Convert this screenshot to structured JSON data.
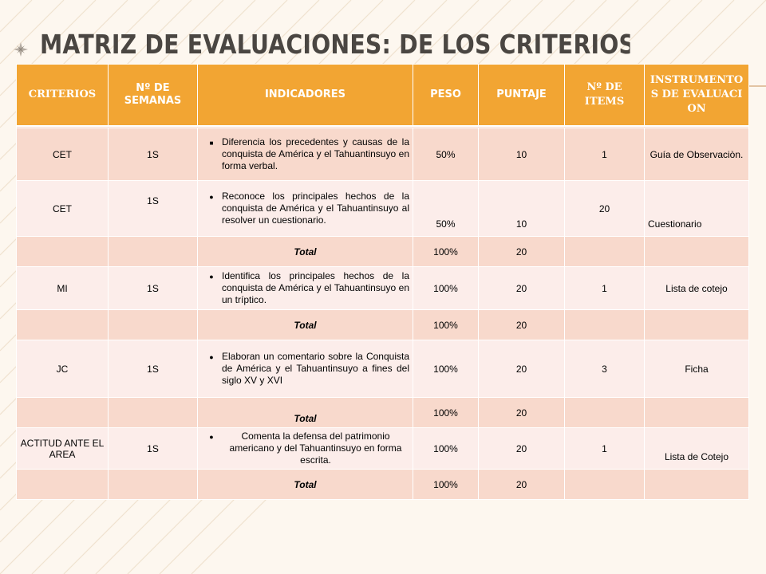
{
  "slide": {
    "title": "Matriz de evaluaciones: de los criterios"
  },
  "colors": {
    "header_bg": "#f2a533",
    "row_light": "#fcedea",
    "row_dark": "#f8d9cc",
    "title_color": "#4a4642"
  },
  "table": {
    "headers": {
      "criterios": "CRITERIOS",
      "semanas": "Nº DE SEMANAS",
      "indicadores": "INDICADORES",
      "peso": "PESO",
      "puntaje": "PUNTAJE",
      "items": "Nº DE ITEMS",
      "instrumentos": "INSTRUMENTOS DE EVALUACION"
    },
    "rows": [
      {
        "criterio": "CET",
        "semanas": "1S",
        "indicador": "Diferencia los precedentes y causas de la conquista de América y el Tahuantinsuyo en forma verbal.",
        "peso": "50%",
        "puntaje": "10",
        "items": "1",
        "instrumento": "Guía de Observaciòn."
      },
      {
        "criterio": "CET",
        "semanas": "1S",
        "indicador": "Reconoce los principales hechos de la conquista de América y el Tahuantinsuyo al resolver un cuestionario.",
        "peso": "50%",
        "puntaje": "10",
        "items": "20",
        "instrumento": "Cuestionario"
      },
      {
        "total_label": "Total",
        "peso": "100%",
        "puntaje": "20"
      },
      {
        "criterio": "MI",
        "semanas": "1S",
        "indicador": "Identifica los principales hechos de la conquista de América y el Tahuantinsuyo en un tríptico.",
        "peso": "100%",
        "puntaje": "20",
        "items": "1",
        "instrumento": "Lista de cotejo"
      },
      {
        "total_label": "Total",
        "peso": "100%",
        "puntaje": "20"
      },
      {
        "criterio": "JC",
        "semanas": "1S",
        "indicador": "Elaboran un comentario sobre la Conquista de América y el Tahuantinsuyo a fines del siglo XV y XVI",
        "peso": "100%",
        "puntaje": "20",
        "items": "3",
        "instrumento": "Ficha"
      },
      {
        "total_label": "Total",
        "peso": "100%",
        "puntaje": "20"
      },
      {
        "criterio": "ACTITUD ANTE EL AREA",
        "semanas": "1S",
        "indicador": "Comenta la defensa del patrimonio americano y del Tahuantinsuyo en forma escrita.",
        "peso": "100%",
        "puntaje": "20",
        "items": "1",
        "instrumento": "Lista de Cotejo"
      },
      {
        "total_label": "Total",
        "peso": "100%",
        "puntaje": "20"
      }
    ]
  }
}
